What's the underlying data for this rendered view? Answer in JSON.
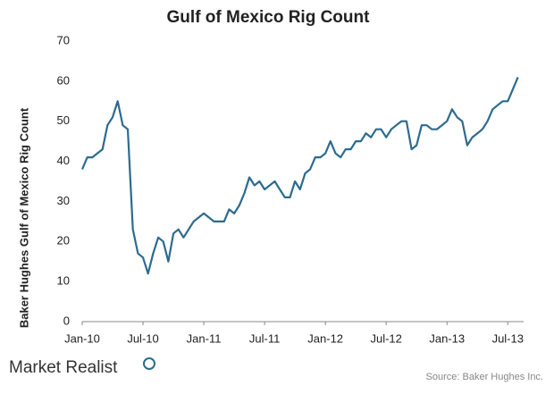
{
  "chart_data": {
    "type": "line",
    "title": "Gulf of Mexico Rig Count",
    "y_label": "Baker Hughes Gulf of Mexico Rig Count",
    "source": "Source: Baker Hughes Inc.",
    "brand": "Market Realist",
    "categories": [
      "Jan-10",
      null,
      null,
      null,
      null,
      null,
      null,
      null,
      null,
      null,
      null,
      null,
      "Jul-10",
      null,
      null,
      null,
      null,
      null,
      null,
      null,
      null,
      null,
      null,
      null,
      "Jan-11",
      null,
      null,
      null,
      null,
      null,
      null,
      null,
      null,
      null,
      null,
      null,
      "Jul-11",
      null,
      null,
      null,
      null,
      null,
      null,
      null,
      null,
      null,
      null,
      null,
      "Jan-12",
      null,
      null,
      null,
      null,
      null,
      null,
      null,
      null,
      null,
      null,
      null,
      "Jul-12",
      null,
      null,
      null,
      null,
      null,
      null,
      null,
      null,
      null,
      null,
      null,
      "Jan-13",
      null,
      null,
      null,
      null,
      null,
      null,
      null,
      null,
      null,
      null,
      null,
      "Jul-13",
      null,
      null
    ],
    "series": [
      {
        "name": "Rig Count",
        "color": "#2c6b8f",
        "values": [
          38,
          41,
          41,
          42,
          43,
          49,
          51,
          55,
          49,
          48,
          23,
          17,
          16,
          12,
          17,
          21,
          20,
          15,
          22,
          23,
          21,
          23,
          25,
          26,
          27,
          26,
          25,
          25,
          25,
          28,
          27,
          29,
          32,
          36,
          34,
          35,
          33,
          34,
          35,
          33,
          31,
          31,
          35,
          33,
          37,
          38,
          41,
          41,
          42,
          45,
          42,
          41,
          43,
          43,
          45,
          45,
          47,
          46,
          48,
          48,
          46,
          48,
          49,
          50,
          50,
          43,
          44,
          49,
          49,
          48,
          48,
          49,
          50,
          53,
          51,
          50,
          44,
          46,
          47,
          48,
          50,
          53,
          54,
          55,
          55,
          58,
          61
        ]
      }
    ],
    "ylim": [
      0,
      70
    ],
    "yticks": [
      0,
      10,
      20,
      30,
      40,
      50,
      60,
      70
    ],
    "grid": false
  }
}
